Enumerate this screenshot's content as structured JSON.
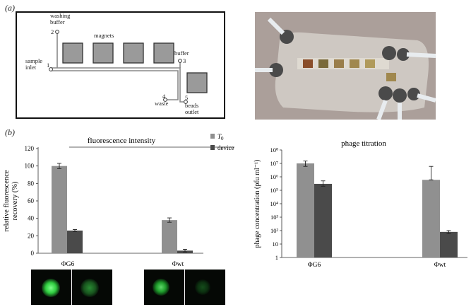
{
  "panel_a": {
    "label": "(a)",
    "schematic": {
      "washing_buffer": "washing\nbuffer",
      "magnets": "magnets",
      "buffer": "buffer",
      "sample_inlet": "sample\ninlet",
      "waste": "waste",
      "beads_outlet": "beads\noutlet",
      "port1": "1",
      "port2": "2",
      "port3": "3",
      "port4": "4",
      "port5": "5"
    },
    "photo_icon": "microfluidic-device-photo"
  },
  "panel_b": {
    "label": "(b)"
  },
  "chart_data": [
    {
      "type": "bar",
      "title": "fluorescence intensity",
      "ylabel": "relative fluorescence\nrecovery (%)",
      "categories": [
        "ΦG6",
        "Φwt"
      ],
      "ylim": [
        0,
        120
      ],
      "yticks": [
        "0",
        "20",
        "40",
        "60",
        "80",
        "100",
        "120"
      ],
      "series": [
        {
          "name": "T0",
          "color": "#909090",
          "values": [
            100,
            38
          ],
          "errors": [
            3,
            2.5
          ]
        },
        {
          "name": "device",
          "color": "#4a4a4a",
          "values": [
            26,
            3
          ],
          "errors": [
            1.2,
            1.5
          ]
        }
      ],
      "legend": [
        "T0",
        "device"
      ],
      "legend_placement": "top-right"
    },
    {
      "type": "bar",
      "title": "phage titration",
      "ylabel": "phage concentration (pfu ml⁻¹)",
      "yscale": "log",
      "categories": [
        "ΦG6",
        "Φwt"
      ],
      "ylim": [
        1,
        100000000
      ],
      "yticks": [
        "1",
        "10",
        "10²",
        "10³",
        "10⁴",
        "10⁵",
        "10⁶",
        "10⁷",
        "10⁸"
      ],
      "series": [
        {
          "name": "T0",
          "color": "#909090",
          "values": [
            10000000,
            600000
          ],
          "err_lo": [
            6000000,
            600000
          ],
          "err_hi": [
            15000000,
            6000000
          ]
        },
        {
          "name": "device",
          "color": "#4a4a4a",
          "values": [
            300000,
            80
          ],
          "err_lo": [
            200000,
            60
          ],
          "err_hi": [
            500000,
            100
          ]
        }
      ]
    }
  ]
}
